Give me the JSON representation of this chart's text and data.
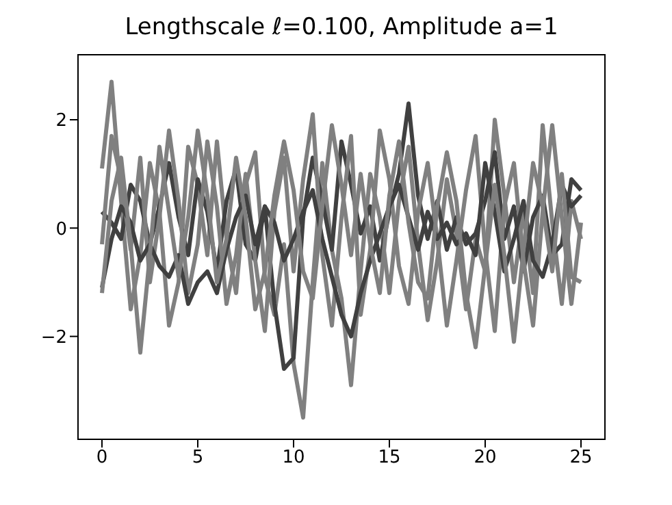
{
  "chart_data": {
    "type": "line",
    "title": "Lengthscale ℓ=0.100, Amplitude a=1",
    "x": [
      0,
      0.5,
      1,
      1.5,
      2,
      2.5,
      3,
      3.5,
      4,
      4.5,
      5,
      5.5,
      6,
      6.5,
      7,
      7.5,
      8,
      8.5,
      9,
      9.5,
      10,
      10.5,
      11,
      11.5,
      12,
      12.5,
      13,
      13.5,
      14,
      14.5,
      15,
      15.5,
      16,
      16.5,
      17,
      17.5,
      18,
      18.5,
      19,
      19.5,
      20,
      20.5,
      21,
      21.5,
      22,
      22.5,
      23,
      23.5,
      24,
      24.5,
      25
    ],
    "series": [
      {
        "color": "#808080",
        "values": [
          1.1,
          2.7,
          0.5,
          -1.5,
          -0.5,
          1.2,
          0.3,
          -1.8,
          -1.0,
          1.5,
          0.8,
          -0.5,
          1.6,
          -0.2,
          -1.2,
          0.8,
          1.4,
          -0.9,
          -1.6,
          -0.3,
          -2.5,
          -3.5,
          -1.0,
          1.2,
          -0.4,
          -1.3,
          -2.9,
          -0.8,
          1.0,
          0.2,
          -1.2,
          0.5,
          1.5,
          -0.3,
          -1.7,
          -0.6,
          0.9,
          -0.1,
          -1.5,
          -0.2,
          -0.8,
          2.0,
          0.6,
          -1.0,
          0.3,
          -1.2,
          1.9,
          0.1,
          -1.4,
          0.5,
          -0.2
        ]
      },
      {
        "color": "#404040",
        "values": [
          0.3,
          0.1,
          -0.2,
          0.8,
          0.5,
          -0.3,
          0.4,
          1.2,
          0.2,
          -0.5,
          0.9,
          0.3,
          -0.8,
          0.5,
          1.1,
          -0.3,
          -0.6,
          0.4,
          -1.4,
          -2.6,
          -2.4,
          0.2,
          1.3,
          0.5,
          -0.4,
          1.6,
          0.8,
          -0.1,
          0.4,
          -0.6,
          0.3,
          1.0,
          2.3,
          0.6,
          -0.2,
          0.5,
          -0.4,
          0.2,
          -0.3,
          -0.1,
          0.5,
          1.4,
          -0.2,
          0.4,
          -0.8,
          0.2,
          0.6,
          -0.5,
          -0.3,
          0.9,
          0.7
        ]
      },
      {
        "color": "#808080",
        "values": [
          -0.3,
          1.7,
          0.9,
          -0.4,
          1.3,
          -1.0,
          0.2,
          1.8,
          0.5,
          -1.2,
          -0.3,
          1.6,
          0.4,
          -1.4,
          -0.5,
          1.0,
          -0.6,
          -1.9,
          0.3,
          1.3,
          -0.8,
          0.9,
          2.1,
          -0.5,
          -1.8,
          0.2,
          1.7,
          -1.6,
          -0.4,
          1.8,
          0.9,
          -0.7,
          -1.4,
          0.3,
          1.2,
          -0.2,
          -1.8,
          -0.6,
          0.7,
          1.7,
          -0.4,
          -1.9,
          0.4,
          1.2,
          -0.6,
          -1.8,
          0.3,
          1.9,
          0.2,
          -1.4,
          0.1
        ]
      },
      {
        "color": "#404040",
        "values": [
          -1.1,
          -0.2,
          0.4,
          0.1,
          -0.6,
          -0.3,
          -0.7,
          -0.9,
          -0.5,
          -1.4,
          -1.0,
          -0.8,
          -1.2,
          -0.4,
          0.2,
          0.6,
          -0.3,
          0.4,
          0.1,
          -0.6,
          -0.2,
          0.3,
          0.7,
          -0.2,
          -0.9,
          -1.6,
          -2.0,
          -1.2,
          -0.6,
          -0.1,
          0.4,
          0.8,
          0.2,
          -0.4,
          0.3,
          -0.2,
          0.1,
          -0.3,
          -0.1,
          -0.5,
          1.2,
          0.3,
          -0.8,
          -0.2,
          0.5,
          -0.6,
          -0.9,
          -0.3,
          0.8,
          0.4,
          0.6
        ]
      },
      {
        "color": "#808080",
        "values": [
          -1.2,
          0.5,
          1.3,
          -0.3,
          -2.3,
          -0.5,
          1.5,
          0.3,
          -0.9,
          0.2,
          1.8,
          0.6,
          -1.0,
          -0.2,
          1.3,
          0.2,
          -1.5,
          -0.8,
          0.6,
          1.6,
          0.7,
          -0.8,
          -1.3,
          0.4,
          1.9,
          0.8,
          -0.5,
          1.0,
          -0.3,
          -1.2,
          0.6,
          1.6,
          0.1,
          -1.0,
          -1.3,
          0.4,
          1.4,
          0.5,
          -1.2,
          -2.2,
          -0.7,
          0.8,
          -0.5,
          -2.1,
          -0.4,
          1.2,
          0.4,
          -0.8,
          1.0,
          -0.9,
          -1.0
        ]
      }
    ],
    "xlim": [
      -1.25,
      26.25
    ],
    "ylim": [
      -3.9,
      3.2
    ],
    "xticks": [
      0,
      5,
      10,
      15,
      20,
      25
    ],
    "yticks": [
      -2,
      0,
      2
    ],
    "grid": false,
    "legend": false,
    "marker": "none",
    "line_style": "solid"
  }
}
